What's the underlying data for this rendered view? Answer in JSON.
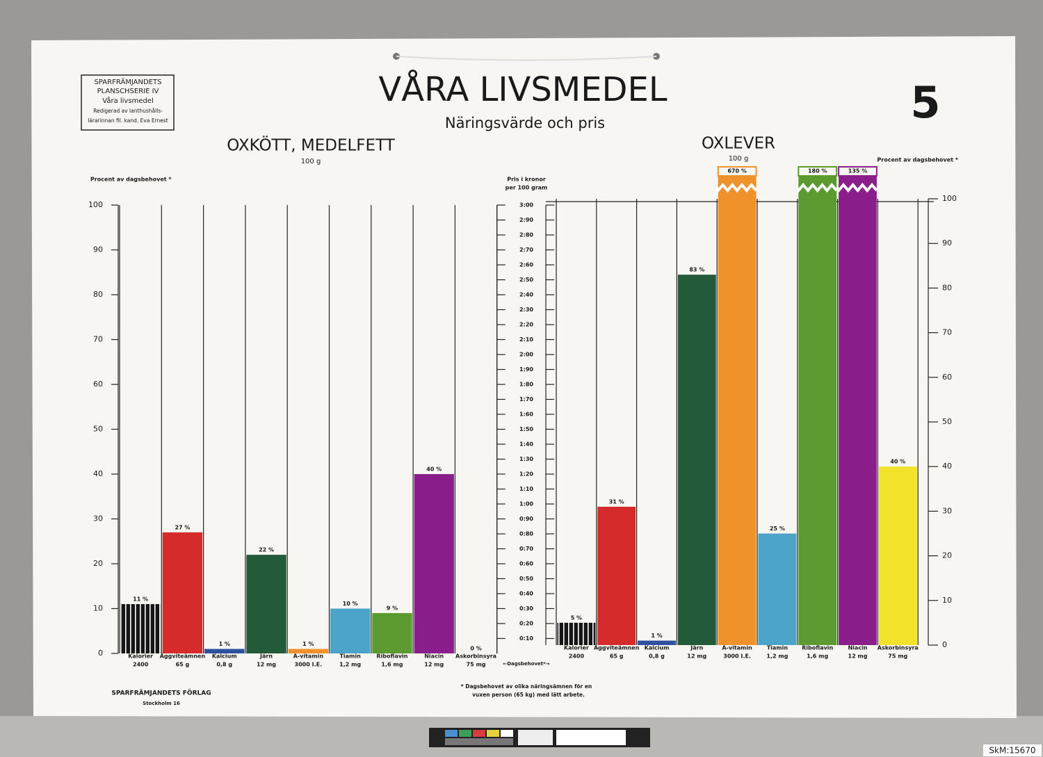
{
  "header": {
    "publisher_box": [
      "SPARFRÄMJANDETS",
      "PLANSCHSERIE IV",
      "Våra livsmedel",
      "Redigerad av lanthushålls-",
      "lärarinnan fil. kand. Eva Ernest"
    ],
    "title": "VÅRA LIVSMEDEL",
    "subtitle": "Näringsvärde och pris",
    "plate_number": "5"
  },
  "footer": {
    "publisher": "SPARFRÄMJANDETS FÖRLAG",
    "city": "Stockholm 16",
    "footnote": [
      "* Dagsbehovet av olika näringsämnen för en",
      "vuxen person (65 kg) med lätt arbete."
    ],
    "center_axis_note": "←Dagsbehovet*→",
    "catalog_id": "SkM:15670"
  },
  "chart_data": [
    {
      "type": "bar",
      "title": "OXKÖTT, MEDELFETT",
      "subtitle": "100 g",
      "y_label": "Procent av dagsbehovet *",
      "yaxis_side": "left",
      "categories": [
        "Kalorier",
        "Äggviteämnen",
        "Kalcium",
        "Järn",
        "A-vitamin",
        "Tiamin",
        "Riboflavin",
        "Niacin",
        "Askorbinsyra"
      ],
      "category_details": [
        "2400",
        "65 g",
        "0,8 g",
        "12 mg",
        "3000 I.E.",
        "1,2 mg",
        "1,6 mg",
        "12 mg",
        "75 mg"
      ],
      "values": [
        11,
        27,
        1,
        22,
        1,
        10,
        9,
        40,
        0
      ],
      "value_labels": [
        "11 %",
        "27 %",
        "1 %",
        "22 %",
        "1 %",
        "10 %",
        "9 %",
        "40 %",
        "0 %"
      ],
      "colors": [
        "#161616",
        "#d62b2b",
        "#2f4fa0",
        "#235a3a",
        "#f0922b",
        "#4aa3c8",
        "#5a9a2e",
        "#8a1f8c",
        "#f2e32a"
      ],
      "patterns": [
        "stripes",
        null,
        null,
        null,
        null,
        null,
        null,
        null,
        null
      ],
      "ylim": [
        0,
        100
      ],
      "yticks": [
        0,
        10,
        20,
        30,
        40,
        50,
        60,
        70,
        80,
        90,
        100
      ],
      "y2_label": [
        "Pris i kronor",
        "per 100 gram"
      ],
      "y2lim": [
        0,
        3
      ],
      "y2ticks": [
        {
          "value": 0.1,
          "label": "0:10"
        },
        {
          "value": 0.2,
          "label": "0:20"
        },
        {
          "value": 0.3,
          "label": "0:30"
        },
        {
          "value": 0.4,
          "label": "0:40"
        },
        {
          "value": 0.5,
          "label": "0:50"
        },
        {
          "value": 0.6,
          "label": "0:60"
        },
        {
          "value": 0.7,
          "label": "0:70"
        },
        {
          "value": 0.8,
          "label": "0:80"
        },
        {
          "value": 0.9,
          "label": "0:90"
        },
        {
          "value": 1.0,
          "label": "1:00"
        },
        {
          "value": 1.1,
          "label": "1:10"
        },
        {
          "value": 1.2,
          "label": "1:20"
        },
        {
          "value": 1.3,
          "label": "1:30"
        },
        {
          "value": 1.4,
          "label": "1:40"
        },
        {
          "value": 1.5,
          "label": "1:50"
        },
        {
          "value": 1.6,
          "label": "1:60"
        },
        {
          "value": 1.7,
          "label": "1:70"
        },
        {
          "value": 1.8,
          "label": "1:80"
        },
        {
          "value": 1.9,
          "label": "1:90"
        },
        {
          "value": 2.0,
          "label": "2:00"
        },
        {
          "value": 2.1,
          "label": "2:10"
        },
        {
          "value": 2.2,
          "label": "2:20"
        },
        {
          "value": 2.3,
          "label": "2:30"
        },
        {
          "value": 2.4,
          "label": "2:40"
        },
        {
          "value": 2.5,
          "label": "2:50"
        },
        {
          "value": 2.6,
          "label": "2:60"
        },
        {
          "value": 2.7,
          "label": "2:70"
        },
        {
          "value": 2.8,
          "label": "2:80"
        },
        {
          "value": 2.9,
          "label": "2:90"
        },
        {
          "value": 3.0,
          "label": "3:00"
        }
      ]
    },
    {
      "type": "bar",
      "title": "OXLEVER",
      "subtitle": "100 g",
      "y_label": "Procent av dagsbehovet *",
      "yaxis_side": "right",
      "axis_break": true,
      "categories": [
        "Kalorier",
        "Äggviteämnen",
        "Kalcium",
        "Järn",
        "A-vitamin",
        "Tiamin",
        "Riboflavin",
        "Niacin",
        "Askorbinsyra"
      ],
      "category_details": [
        "2400",
        "65 g",
        "0,8 g",
        "12 mg",
        "3000 I.E.",
        "1,2 mg",
        "1,6 mg",
        "12 mg",
        "75 mg"
      ],
      "values": [
        5,
        31,
        1,
        83,
        670,
        25,
        180,
        135,
        40
      ],
      "value_labels": [
        "5 %",
        "31 %",
        "1 %",
        "83 %",
        "670 %",
        "25 %",
        "180 %",
        "135 %",
        "40 %"
      ],
      "colors": [
        "#161616",
        "#d62b2b",
        "#2f4fa0",
        "#235a3a",
        "#f0922b",
        "#4aa3c8",
        "#5a9a2e",
        "#8a1f8c",
        "#f2e32a"
      ],
      "patterns": [
        "stripes",
        null,
        null,
        null,
        null,
        null,
        null,
        null,
        null
      ],
      "ylim": [
        0,
        100
      ],
      "yticks": [
        0,
        10,
        20,
        30,
        40,
        50,
        60,
        70,
        80,
        90,
        100
      ]
    }
  ]
}
